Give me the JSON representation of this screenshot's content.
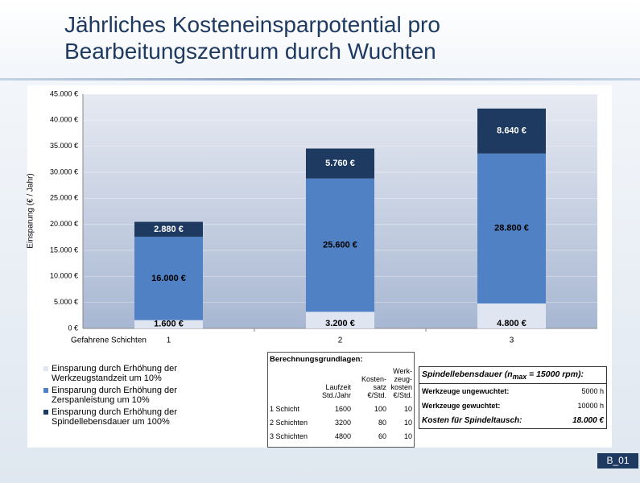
{
  "chart_data": {
    "type": "stacked-bar",
    "title": "Jährliches Kosteneinsparpotential pro Bearbeitungszentrum durch Wuchten",
    "x_label": "Gefahrene Schichten",
    "y_label": "Einsparung (€ / Jahr)",
    "categories": [
      "1",
      "2",
      "3"
    ],
    "series": [
      {
        "name": "Einsparung durch Erhöhung der Werkzeugstandzeit um 10%",
        "color": "#dfe6f1",
        "values": [
          1600,
          3200,
          4800
        ],
        "value_labels": [
          "1.600 €",
          "3.200 €",
          "4.800 €"
        ]
      },
      {
        "name": "Einsparung durch Erhöhung der Zerspanleistung um 10%",
        "color": "#4f81c4",
        "values": [
          16000,
          25600,
          28800
        ],
        "value_labels": [
          "16.000 €",
          "25.600 €",
          "28.800 €"
        ]
      },
      {
        "name": "Einsparung durch Erhöhung der Spindellebensdauer um 100%",
        "color": "#1f3a60",
        "values": [
          2880,
          5760,
          8640
        ],
        "value_labels": [
          "2.880 €",
          "5.760 €",
          "8.640 €"
        ]
      }
    ],
    "ylim": [
      0,
      45000
    ],
    "yticks": [
      {
        "value": 0,
        "label": "0 €"
      },
      {
        "value": 5000,
        "label": "5.000 €"
      },
      {
        "value": 10000,
        "label": "10.000 €"
      },
      {
        "value": 15000,
        "label": "15.000 €"
      },
      {
        "value": 20000,
        "label": "20.000 €"
      },
      {
        "value": 25000,
        "label": "25.000 €"
      },
      {
        "value": 30000,
        "label": "30.000 €"
      },
      {
        "value": 35000,
        "label": "35.000 €"
      },
      {
        "value": 40000,
        "label": "40.000 €"
      },
      {
        "value": 45000,
        "label": "45.000 €"
      }
    ]
  },
  "calc_table": {
    "title": "Berechnungsgrundlagen:",
    "header": [
      "Laufzeit Std./Jahr",
      "Kosten-satz €/Std.",
      "Werk-zeug-kosten €/Std."
    ],
    "rows": [
      [
        "1 Schicht",
        "1600",
        "100",
        "10"
      ],
      [
        "2 Schichten",
        "3200",
        "80",
        "10"
      ],
      [
        "3 Schichten",
        "4800",
        "60",
        "10"
      ]
    ]
  },
  "spindle_table": {
    "title": "Spindellebensdauer (n",
    "title_sub": "max",
    "title_rest": " = 15000 rpm):",
    "rows": [
      [
        "Werkzeuge ungewuchtet:",
        "5000 h"
      ],
      [
        "Werkzeuge gewuchtet:",
        "10000 h"
      ],
      [
        "Kosten für Spindeltausch:",
        "18.000 €"
      ]
    ]
  },
  "slide_id": "B_01"
}
